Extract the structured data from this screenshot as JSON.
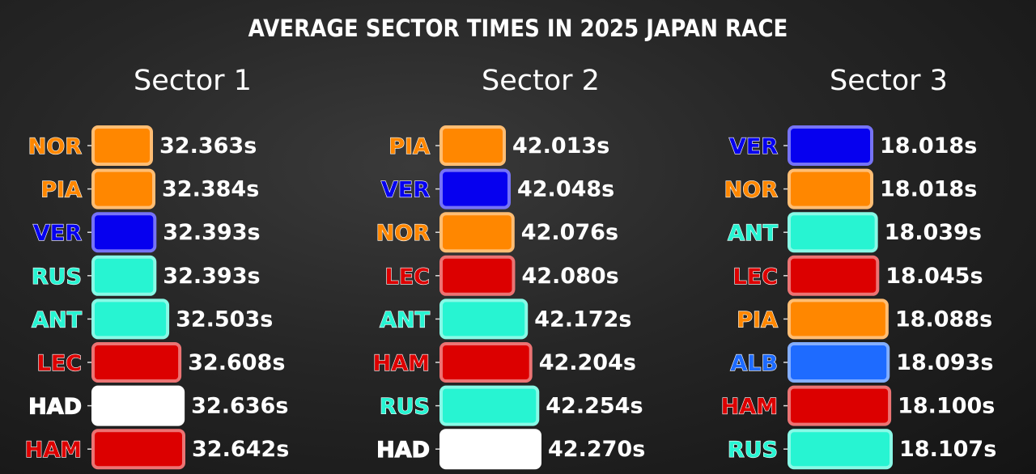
{
  "title": "AVERAGE SECTOR TIMES IN 2025 JAPAN RACE",
  "chart_data": [
    {
      "type": "bar",
      "title": "Sector 1",
      "orientation": "horizontal",
      "categories": [
        "NOR",
        "PIA",
        "VER",
        "RUS",
        "ANT",
        "LEC",
        "HAD",
        "HAM"
      ],
      "values": [
        32.363,
        32.384,
        32.393,
        32.393,
        32.503,
        32.608,
        32.636,
        32.642
      ],
      "labels": [
        "32.363s",
        "32.384s",
        "32.393s",
        "32.393s",
        "32.503s",
        "32.608s",
        "32.636s",
        "32.642s"
      ],
      "colors": [
        "#ff8700",
        "#ff8700",
        "#0600ef",
        "#27f4d2",
        "#27f4d2",
        "#dc0000",
        "#ffffff",
        "#dc0000"
      ],
      "label_colors": [
        "#ff8700",
        "#ff8700",
        "#0600ef",
        "#27f4d2",
        "#27f4d2",
        "#dc0000",
        "#ffffff",
        "#dc0000"
      ],
      "grid": false
    },
    {
      "type": "bar",
      "title": "Sector 2",
      "orientation": "horizontal",
      "categories": [
        "PIA",
        "VER",
        "NOR",
        "LEC",
        "ANT",
        "HAM",
        "RUS",
        "HAD"
      ],
      "values": [
        42.013,
        42.048,
        42.076,
        42.08,
        42.172,
        42.204,
        42.254,
        42.27
      ],
      "labels": [
        "42.013s",
        "42.048s",
        "42.076s",
        "42.080s",
        "42.172s",
        "42.204s",
        "42.254s",
        "42.270s"
      ],
      "colors": [
        "#ff8700",
        "#0600ef",
        "#ff8700",
        "#dc0000",
        "#27f4d2",
        "#dc0000",
        "#27f4d2",
        "#ffffff"
      ],
      "label_colors": [
        "#ff8700",
        "#0600ef",
        "#ff8700",
        "#dc0000",
        "#27f4d2",
        "#dc0000",
        "#27f4d2",
        "#ffffff"
      ],
      "grid": false
    },
    {
      "type": "bar",
      "title": "Sector 3",
      "orientation": "horizontal",
      "categories": [
        "VER",
        "NOR",
        "ANT",
        "LEC",
        "PIA",
        "ALB",
        "HAM",
        "RUS"
      ],
      "values": [
        18.018,
        18.018,
        18.039,
        18.045,
        18.088,
        18.093,
        18.1,
        18.107
      ],
      "labels": [
        "18.018s",
        "18.018s",
        "18.039s",
        "18.045s",
        "18.088s",
        "18.093s",
        "18.100s",
        "18.107s"
      ],
      "colors": [
        "#0600ef",
        "#ff8700",
        "#27f4d2",
        "#dc0000",
        "#ff8700",
        "#1e6bff",
        "#dc0000",
        "#27f4d2"
      ],
      "label_colors": [
        "#0600ef",
        "#ff8700",
        "#27f4d2",
        "#dc0000",
        "#ff8700",
        "#1e6bff",
        "#dc0000",
        "#27f4d2"
      ],
      "grid": false
    }
  ]
}
